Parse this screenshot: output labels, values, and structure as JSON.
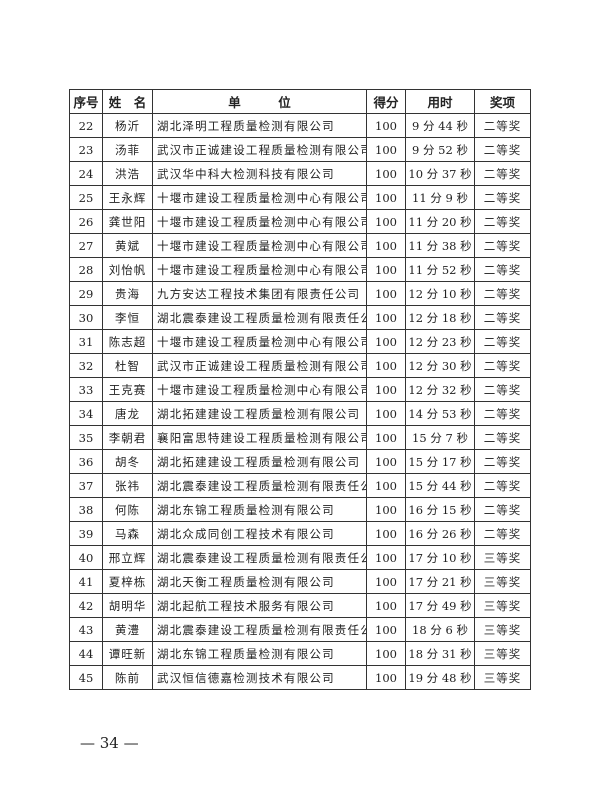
{
  "headers": {
    "no": "序号",
    "name": "姓　名",
    "unit": "单　　　位",
    "score": "得分",
    "time": "用时",
    "award": "奖项"
  },
  "rows": [
    {
      "no": "22",
      "name": "杨沂",
      "unit": "湖北泽明工程质量检测有限公司",
      "score": "100",
      "time": "9 分 44 秒",
      "award": "二等奖"
    },
    {
      "no": "23",
      "name": "汤菲",
      "unit": "武汉市正诚建设工程质量检测有限公司",
      "score": "100",
      "time": "9 分 52 秒",
      "award": "二等奖"
    },
    {
      "no": "24",
      "name": "洪浩",
      "unit": "武汉华中科大检测科技有限公司",
      "score": "100",
      "time": "10 分 37 秒",
      "award": "二等奖"
    },
    {
      "no": "25",
      "name": "王永辉",
      "unit": "十堰市建设工程质量检测中心有限公司",
      "score": "100",
      "time": "11 分 9 秒",
      "award": "二等奖"
    },
    {
      "no": "26",
      "name": "龚世阳",
      "unit": "十堰市建设工程质量检测中心有限公司",
      "score": "100",
      "time": "11 分 20 秒",
      "award": "二等奖"
    },
    {
      "no": "27",
      "name": "黄斌",
      "unit": "十堰市建设工程质量检测中心有限公司",
      "score": "100",
      "time": "11 分 38 秒",
      "award": "二等奖"
    },
    {
      "no": "28",
      "name": "刘怡帆",
      "unit": "十堰市建设工程质量检测中心有限公司",
      "score": "100",
      "time": "11 分 52 秒",
      "award": "二等奖"
    },
    {
      "no": "29",
      "name": "贵海",
      "unit": "九方安达工程技术集团有限责任公司",
      "score": "100",
      "time": "12 分 10 秒",
      "award": "二等奖"
    },
    {
      "no": "30",
      "name": "李恒",
      "unit": "湖北震泰建设工程质量检测有限责任公司",
      "score": "100",
      "time": "12 分 18 秒",
      "award": "二等奖"
    },
    {
      "no": "31",
      "name": "陈志超",
      "unit": "十堰市建设工程质量检测中心有限公司",
      "score": "100",
      "time": "12 分 23 秒",
      "award": "二等奖"
    },
    {
      "no": "32",
      "name": "杜智",
      "unit": "武汉市正诚建设工程质量检测有限公司",
      "score": "100",
      "time": "12 分 30 秒",
      "award": "二等奖"
    },
    {
      "no": "33",
      "name": "王克赛",
      "unit": "十堰市建设工程质量检测中心有限公司",
      "score": "100",
      "time": "12 分 32 秒",
      "award": "二等奖"
    },
    {
      "no": "34",
      "name": "唐龙",
      "unit": "湖北拓建建设工程质量检测有限公司",
      "score": "100",
      "time": "14 分 53 秒",
      "award": "二等奖"
    },
    {
      "no": "35",
      "name": "李朝君",
      "unit": "襄阳富思特建设工程质量检测有限公司",
      "score": "100",
      "time": "15 分 7 秒",
      "award": "二等奖"
    },
    {
      "no": "36",
      "name": "胡冬",
      "unit": "湖北拓建建设工程质量检测有限公司",
      "score": "100",
      "time": "15 分 17 秒",
      "award": "二等奖"
    },
    {
      "no": "37",
      "name": "张祎",
      "unit": "湖北震泰建设工程质量检测有限责任公司",
      "score": "100",
      "time": "15 分 44 秒",
      "award": "二等奖"
    },
    {
      "no": "38",
      "name": "何陈",
      "unit": "湖北东锦工程质量检测有限公司",
      "score": "100",
      "time": "16 分 15 秒",
      "award": "二等奖"
    },
    {
      "no": "39",
      "name": "马森",
      "unit": "湖北众成同创工程技术有限公司",
      "score": "100",
      "time": "16 分 26 秒",
      "award": "二等奖"
    },
    {
      "no": "40",
      "name": "邢立辉",
      "unit": "湖北震泰建设工程质量检测有限责任公司",
      "score": "100",
      "time": "17 分 10 秒",
      "award": "三等奖"
    },
    {
      "no": "41",
      "name": "夏梓栋",
      "unit": "湖北天衡工程质量检测有限公司",
      "score": "100",
      "time": "17 分 21 秒",
      "award": "三等奖"
    },
    {
      "no": "42",
      "name": "胡明华",
      "unit": "湖北起航工程技术服务有限公司",
      "score": "100",
      "time": "17 分 49 秒",
      "award": "三等奖"
    },
    {
      "no": "43",
      "name": "黄澧",
      "unit": "湖北震泰建设工程质量检测有限责任公司",
      "score": "100",
      "time": "18 分 6 秒",
      "award": "三等奖"
    },
    {
      "no": "44",
      "name": "谭旺新",
      "unit": "湖北东锦工程质量检测有限公司",
      "score": "100",
      "time": "18 分 31 秒",
      "award": "三等奖"
    },
    {
      "no": "45",
      "name": "陈前",
      "unit": "武汉恒信德嘉检测技术有限公司",
      "score": "100",
      "time": "19 分 48 秒",
      "award": "三等奖"
    }
  ],
  "footer": {
    "page": "— 34 —"
  }
}
